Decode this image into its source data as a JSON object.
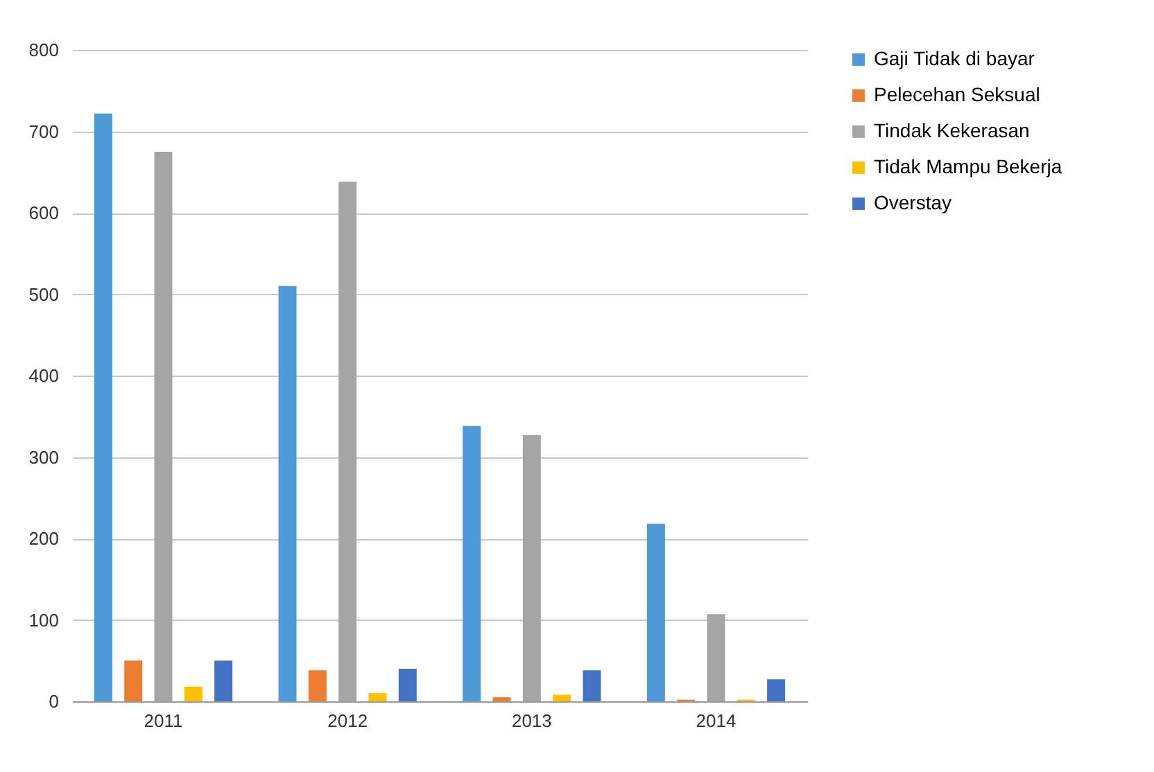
{
  "chart_data": {
    "type": "bar",
    "categories": [
      "2011",
      "2012",
      "2013",
      "2014"
    ],
    "series": [
      {
        "name": "Gaji Tidak di bayar",
        "color": "#4e9ad8",
        "values": [
          722,
          510,
          338,
          218
        ]
      },
      {
        "name": "Pelecehan Seksual",
        "color": "#ed7d31",
        "values": [
          50,
          38,
          5,
          2
        ]
      },
      {
        "name": "Tindak Kekerasan",
        "color": "#a5a5a5",
        "values": [
          675,
          638,
          327,
          107
        ]
      },
      {
        "name": "Tidak Mampu Bekerja",
        "color": "#ffc000",
        "values": [
          18,
          10,
          8,
          2
        ]
      },
      {
        "name": "Overstay",
        "color": "#4472c4",
        "values": [
          50,
          40,
          38,
          27
        ]
      }
    ],
    "ylim": [
      0,
      800
    ],
    "yticks": [
      0,
      100,
      200,
      300,
      400,
      500,
      600,
      700,
      800
    ],
    "grid": "y",
    "legend": "right"
  }
}
